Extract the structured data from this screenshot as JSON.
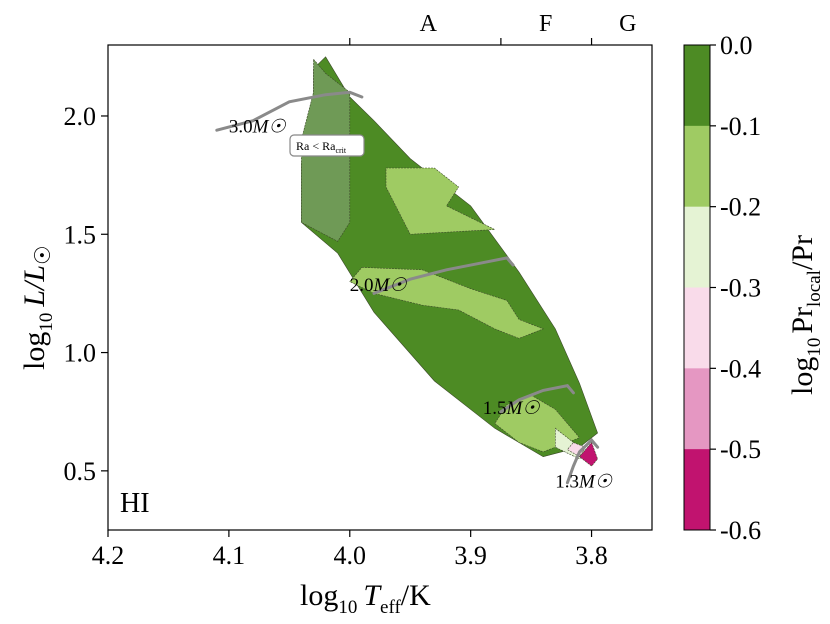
{
  "chart_data": {
    "type": "heatmap",
    "subtype": "filled-contour HR diagram",
    "panel_label": "HI",
    "xlabel": {
      "base": "log",
      "sub": "10",
      "main": "T",
      "main_sub": "eff",
      "tail": "/K"
    },
    "ylabel": {
      "base": "log",
      "sub": "10",
      "main": "L/L",
      "tail": "☉"
    },
    "xlim": [
      4.2,
      3.75
    ],
    "ylim": [
      0.25,
      2.3
    ],
    "x_ticks": [
      {
        "value": 4.2,
        "label": "4.2"
      },
      {
        "value": 4.1,
        "label": "4.1"
      },
      {
        "value": 4.0,
        "label": "4.0"
      },
      {
        "value": 3.9,
        "label": "3.9"
      },
      {
        "value": 3.8,
        "label": "3.8"
      }
    ],
    "y_ticks": [
      {
        "value": 0.5,
        "label": "0.5"
      },
      {
        "value": 1.0,
        "label": "1.0"
      },
      {
        "value": 1.5,
        "label": "1.5"
      },
      {
        "value": 2.0,
        "label": "2.0"
      }
    ],
    "top_axis": {
      "boundaries": [
        4.0,
        3.875,
        3.8
      ],
      "spectral_types": [
        {
          "label": "A",
          "at": 3.935
        },
        {
          "label": "F",
          "at": 3.838
        },
        {
          "label": "G",
          "at": 3.77
        }
      ]
    },
    "colorbar": {
      "label_main": "log",
      "label_sub": "10",
      "label_pr": "Pr",
      "label_pr_sub": "local",
      "label_tail": "/Pr",
      "levels": [
        0.0,
        -0.1,
        -0.2,
        -0.3,
        -0.4,
        -0.5,
        -0.6
      ],
      "tick_labels": [
        "0.0",
        "-0.1",
        "-0.2",
        "-0.3",
        "-0.4",
        "-0.5",
        "-0.6"
      ],
      "colors": [
        "#4d8b24",
        "#9fcb63",
        "#e5f3d4",
        "#f9dbea",
        "#e597c2",
        "#c1136f"
      ]
    },
    "region_series": [
      {
        "name": "log10 Pr_local/Pr in (-0.1, 0.0]",
        "color": "#4d8b24",
        "polygon": [
          [
            4.02,
            2.25
          ],
          [
            4.0,
            2.08
          ],
          [
            3.98,
            1.98
          ],
          [
            3.95,
            1.82
          ],
          [
            3.9,
            1.62
          ],
          [
            3.86,
            1.34
          ],
          [
            3.83,
            1.1
          ],
          [
            3.81,
            0.87
          ],
          [
            3.795,
            0.66
          ],
          [
            3.81,
            0.6
          ],
          [
            3.84,
            0.56
          ],
          [
            3.88,
            0.68
          ],
          [
            3.93,
            0.88
          ],
          [
            3.98,
            1.17
          ],
          [
            4.01,
            1.42
          ],
          [
            4.04,
            1.55
          ],
          [
            4.04,
            1.8
          ],
          [
            4.03,
            2.0
          ],
          [
            4.03,
            2.2
          ]
        ]
      },
      {
        "name": "Ra < Ra_crit",
        "color": "#6f9a56",
        "polygon": [
          [
            4.03,
            2.24
          ],
          [
            4.02,
            2.18
          ],
          [
            4.0,
            2.1
          ],
          [
            4.0,
            1.55
          ],
          [
            4.01,
            1.47
          ],
          [
            4.04,
            1.55
          ],
          [
            4.04,
            1.9
          ],
          [
            4.03,
            2.1
          ]
        ]
      },
      {
        "name": "log10 Pr_local/Pr in (-0.2, -0.1] (upper)",
        "color": "#9fcb63",
        "polygon": [
          [
            3.97,
            1.78
          ],
          [
            3.93,
            1.78
          ],
          [
            3.91,
            1.7
          ],
          [
            3.92,
            1.62
          ],
          [
            3.88,
            1.52
          ],
          [
            3.95,
            1.5
          ],
          [
            3.96,
            1.6
          ],
          [
            3.97,
            1.7
          ]
        ]
      },
      {
        "name": "log10 Pr_local/Pr in (-0.2, -0.1] (middle)",
        "color": "#9fcb63",
        "polygon": [
          [
            3.99,
            1.36
          ],
          [
            3.94,
            1.35
          ],
          [
            3.9,
            1.27
          ],
          [
            3.87,
            1.22
          ],
          [
            3.86,
            1.14
          ],
          [
            3.84,
            1.1
          ],
          [
            3.86,
            1.06
          ],
          [
            3.88,
            1.1
          ],
          [
            3.91,
            1.18
          ],
          [
            3.94,
            1.2
          ],
          [
            3.98,
            1.25
          ],
          [
            4.0,
            1.3
          ]
        ]
      },
      {
        "name": "log10 Pr_local/Pr in (-0.2, -0.1] (lower)",
        "color": "#9fcb63",
        "polygon": [
          [
            3.85,
            0.82
          ],
          [
            3.83,
            0.76
          ],
          [
            3.82,
            0.7
          ],
          [
            3.81,
            0.64
          ],
          [
            3.84,
            0.58
          ],
          [
            3.86,
            0.62
          ],
          [
            3.88,
            0.7
          ],
          [
            3.87,
            0.78
          ]
        ]
      },
      {
        "name": "log10 Pr_local/Pr in (-0.3, -0.2]",
        "color": "#e5f3d4",
        "polygon": [
          [
            3.83,
            0.68
          ],
          [
            3.82,
            0.64
          ],
          [
            3.805,
            0.58
          ],
          [
            3.81,
            0.55
          ],
          [
            3.83,
            0.6
          ]
        ]
      },
      {
        "name": "log10 Pr_local/Pr in (-0.4, -0.3]",
        "color": "#f9dbea",
        "polygon": [
          [
            3.815,
            0.62
          ],
          [
            3.805,
            0.6
          ],
          [
            3.81,
            0.56
          ],
          [
            3.82,
            0.59
          ]
        ]
      },
      {
        "name": "log10 Pr_local/Pr in (-0.6, -0.5]",
        "color": "#c1136f",
        "polygon": [
          [
            3.8,
            0.62
          ],
          [
            3.795,
            0.55
          ],
          [
            3.8,
            0.52
          ],
          [
            3.81,
            0.56
          ]
        ]
      }
    ],
    "tracks": [
      {
        "label": "3.0",
        "unit": "M☉",
        "label_at": [
          4.1,
          1.93
        ],
        "points": [
          [
            4.11,
            1.94
          ],
          [
            4.08,
            1.98
          ],
          [
            4.05,
            2.06
          ],
          [
            4.02,
            2.09
          ],
          [
            4.0,
            2.1
          ],
          [
            3.99,
            2.08
          ]
        ]
      },
      {
        "label": "2.0",
        "unit": "M☉",
        "label_at": [
          4.0,
          1.26
        ],
        "points": [
          [
            3.98,
            1.25
          ],
          [
            3.95,
            1.31
          ],
          [
            3.92,
            1.35
          ],
          [
            3.89,
            1.38
          ],
          [
            3.87,
            1.4
          ],
          [
            3.865,
            1.37
          ]
        ]
      },
      {
        "label": "1.5",
        "unit": "M☉",
        "label_at": [
          3.89,
          0.74
        ],
        "points": [
          [
            3.875,
            0.75
          ],
          [
            3.86,
            0.8
          ],
          [
            3.84,
            0.84
          ],
          [
            3.82,
            0.86
          ],
          [
            3.815,
            0.83
          ]
        ]
      },
      {
        "label": "1.3",
        "unit": "M☉",
        "label_at": [
          3.83,
          0.43
        ],
        "points": [
          [
            3.82,
            0.45
          ],
          [
            3.815,
            0.52
          ],
          [
            3.81,
            0.58
          ],
          [
            3.8,
            0.63
          ],
          [
            3.795,
            0.6
          ]
        ]
      }
    ],
    "annotation": {
      "text_main": "Ra < Ra",
      "text_sub": "crit",
      "at": [
        4.02,
        1.87
      ]
    }
  }
}
